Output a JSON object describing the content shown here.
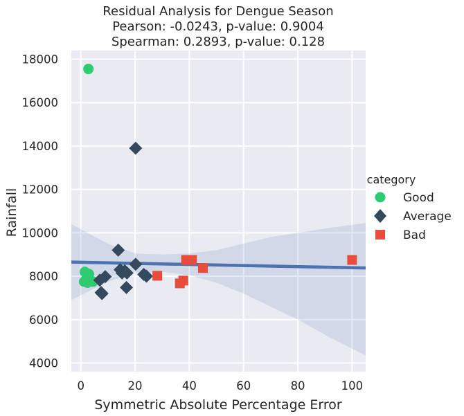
{
  "chart_data": {
    "type": "scatter",
    "title_lines": [
      "Residual Analysis for Dengue Season",
      "Pearson: -0.0243, p-value: 0.9004",
      "Spearman: 0.2893, p-value: 0.128"
    ],
    "xlabel": "Symmetric Absolute Percentage Error",
    "ylabel": "Rainfall",
    "xlim": [
      -3.5,
      105
    ],
    "ylim": [
      3600,
      18400
    ],
    "xticks": [
      0,
      20,
      40,
      60,
      80,
      100
    ],
    "yticks": [
      4000,
      6000,
      8000,
      10000,
      12000,
      14000,
      16000,
      18000
    ],
    "grid": true,
    "legend": {
      "title": "category",
      "placement": "right",
      "entries": [
        {
          "name": "Good",
          "marker": "circle",
          "color": "#2ecc71"
        },
        {
          "name": "Average",
          "marker": "diamond",
          "color": "#34495e"
        },
        {
          "name": "Bad",
          "marker": "square",
          "color": "#e74c3c"
        }
      ]
    },
    "series": [
      {
        "name": "Good",
        "points": [
          {
            "x": 2.8,
            "y": 17550
          },
          {
            "x": 1.5,
            "y": 8200
          },
          {
            "x": 3.0,
            "y": 8100
          },
          {
            "x": 2.2,
            "y": 7950
          },
          {
            "x": 3.2,
            "y": 7850
          },
          {
            "x": 1.2,
            "y": 7750
          },
          {
            "x": 4.5,
            "y": 7750
          },
          {
            "x": 2.5,
            "y": 7700
          }
        ]
      },
      {
        "name": "Average",
        "points": [
          {
            "x": 20.2,
            "y": 13900
          },
          {
            "x": 13.8,
            "y": 9200
          },
          {
            "x": 20.2,
            "y": 8550
          },
          {
            "x": 14.5,
            "y": 8300
          },
          {
            "x": 15.2,
            "y": 8150
          },
          {
            "x": 16.2,
            "y": 8250
          },
          {
            "x": 17.0,
            "y": 8150
          },
          {
            "x": 23.2,
            "y": 8080
          },
          {
            "x": 24.2,
            "y": 8000
          },
          {
            "x": 9.0,
            "y": 7980
          },
          {
            "x": 7.0,
            "y": 7820
          },
          {
            "x": 16.8,
            "y": 7480
          },
          {
            "x": 7.5,
            "y": 7250
          },
          {
            "x": 7.8,
            "y": 7200
          }
        ]
      },
      {
        "name": "Bad",
        "points": [
          {
            "x": 38.8,
            "y": 8750
          },
          {
            "x": 41.0,
            "y": 8750
          },
          {
            "x": 100.0,
            "y": 8750
          },
          {
            "x": 45.0,
            "y": 8380
          },
          {
            "x": 28.2,
            "y": 8020
          },
          {
            "x": 37.8,
            "y": 7800
          },
          {
            "x": 36.5,
            "y": 7670
          }
        ]
      }
    ],
    "regression": {
      "line": {
        "x0": -3.5,
        "y0": 8650,
        "x1": 105,
        "y1": 8380
      },
      "ci_upper": [
        {
          "x": -3.5,
          "y": 10400
        },
        {
          "x": 10,
          "y": 9500
        },
        {
          "x": 20,
          "y": 9050
        },
        {
          "x": 30,
          "y": 9000
        },
        {
          "x": 40,
          "y": 9050
        },
        {
          "x": 50,
          "y": 9200
        },
        {
          "x": 60,
          "y": 9500
        },
        {
          "x": 70,
          "y": 9800
        },
        {
          "x": 80,
          "y": 10000
        },
        {
          "x": 90,
          "y": 10200
        },
        {
          "x": 105,
          "y": 10450
        }
      ],
      "ci_lower": [
        {
          "x": -3.5,
          "y": 6900
        },
        {
          "x": 10,
          "y": 7750
        },
        {
          "x": 20,
          "y": 8150
        },
        {
          "x": 30,
          "y": 8200
        },
        {
          "x": 40,
          "y": 8050
        },
        {
          "x": 50,
          "y": 7700
        },
        {
          "x": 60,
          "y": 7200
        },
        {
          "x": 70,
          "y": 6600
        },
        {
          "x": 80,
          "y": 6000
        },
        {
          "x": 90,
          "y": 5300
        },
        {
          "x": 105,
          "y": 4350
        }
      ],
      "line_color": "#4c72b0"
    }
  }
}
